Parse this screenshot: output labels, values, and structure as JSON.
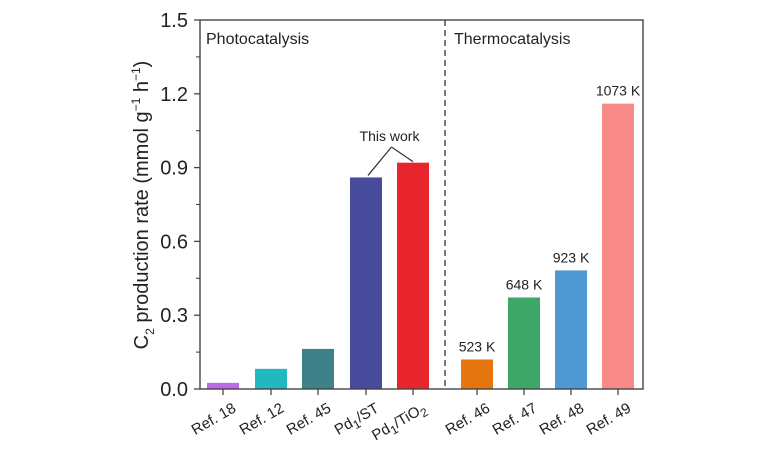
{
  "chart_data": {
    "type": "bar",
    "title": "",
    "xlabel": "",
    "ylabel": {
      "prefix": "C",
      "prefix_sub": "2",
      "main": " production rate (mmol g",
      "sup1": "−1",
      "mid": " h",
      "sup2": "−1",
      "suffix": ")"
    },
    "ylabel_plain": "C2 production rate (mmol g−1 h−1)",
    "ylim": [
      0,
      1.5
    ],
    "yticks": [
      0.0,
      0.3,
      0.6,
      0.9,
      1.2,
      1.5
    ],
    "ytick_labels": [
      "0.0",
      "0.3",
      "0.6",
      "0.9",
      "1.2",
      "1.5"
    ],
    "minor_yticks": [
      0.15,
      0.45,
      0.75,
      1.05,
      1.35
    ],
    "grid": false,
    "categories": [
      "Ref. 18",
      "Ref. 12",
      "Ref. 45",
      "Pd1/ST",
      "Pd1/TiO2",
      "Ref. 46",
      "Ref. 47",
      "Ref. 48",
      "Ref. 49"
    ],
    "category_labels": [
      {
        "main": "Ref. 18"
      },
      {
        "main": "Ref. 12"
      },
      {
        "main": "Ref. 45"
      },
      {
        "main": "Pd",
        "sub": "1",
        "rest": "/ST"
      },
      {
        "main": "Pd",
        "sub": "1",
        "rest": "/TiO",
        "sub2": "2"
      },
      {
        "main": "Ref. 46"
      },
      {
        "main": "Ref. 47"
      },
      {
        "main": "Ref. 48"
      },
      {
        "main": "Ref. 49"
      }
    ],
    "values": [
      0.025,
      0.082,
      0.163,
      0.86,
      0.92,
      0.12,
      0.372,
      0.482,
      1.16
    ],
    "colors": [
      "#c06ae8",
      "#22b8bd",
      "#3f8189",
      "#484a9c",
      "#e8252d",
      "#e5750f",
      "#3fa66a",
      "#4e98d4",
      "#f98a8a"
    ],
    "data_labels": [
      "",
      "",
      "",
      "",
      "",
      "523 K",
      "648 K",
      "923 K",
      "1073 K"
    ],
    "regions": [
      {
        "label": "Photocatalysis",
        "categories": [
          0,
          1,
          2,
          3,
          4
        ]
      },
      {
        "label": "Thermocatalysis",
        "categories": [
          5,
          6,
          7,
          8
        ]
      }
    ],
    "annotations": [
      {
        "text": "This work",
        "points_to": [
          "Pd1/ST",
          "Pd1/TiO2"
        ]
      }
    ],
    "legend": "none"
  }
}
